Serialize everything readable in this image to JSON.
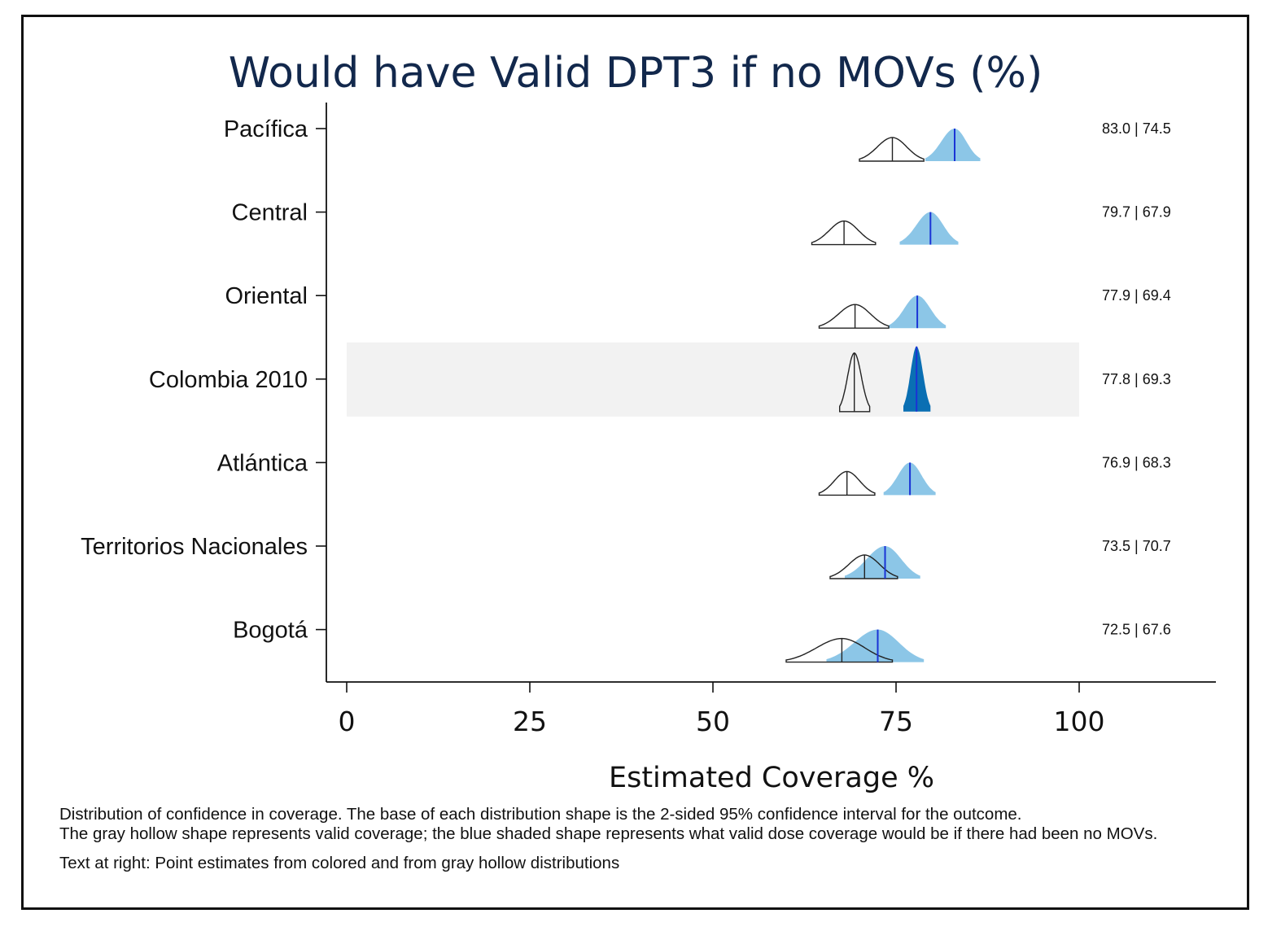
{
  "chart_data": {
    "type": "distribution",
    "title": "Would have Valid DPT3 if no MOVs (%)",
    "xlabel": "Estimated Coverage %",
    "xlim": [
      -3,
      119
    ],
    "xticks": [
      0,
      25,
      50,
      75,
      100
    ],
    "highlight_row": "Colombia 2010",
    "rows": [
      {
        "label": "Pacífica",
        "value_text": "83.0 | 74.5",
        "blue": {
          "point": 83.0,
          "lo": 79.0,
          "hi": 86.5,
          "aggregate": false
        },
        "gray": {
          "point": 74.5,
          "lo": 70.0,
          "hi": 78.8
        }
      },
      {
        "label": "Central",
        "value_text": "79.7 | 67.9",
        "blue": {
          "point": 79.7,
          "lo": 75.5,
          "hi": 83.5,
          "aggregate": false
        },
        "gray": {
          "point": 67.9,
          "lo": 63.5,
          "hi": 72.2
        }
      },
      {
        "label": "Oriental",
        "value_text": "77.9 | 69.4",
        "blue": {
          "point": 77.9,
          "lo": 74.0,
          "hi": 81.8,
          "aggregate": false
        },
        "gray": {
          "point": 69.4,
          "lo": 64.5,
          "hi": 74.0
        }
      },
      {
        "label": "Colombia 2010",
        "value_text": "77.8 | 69.3",
        "blue": {
          "point": 77.8,
          "lo": 76.0,
          "hi": 79.7,
          "aggregate": true
        },
        "gray": {
          "point": 69.3,
          "lo": 67.3,
          "hi": 71.4
        }
      },
      {
        "label": "Atlántica",
        "value_text": "76.9 | 68.3",
        "blue": {
          "point": 76.9,
          "lo": 73.3,
          "hi": 80.4,
          "aggregate": false
        },
        "gray": {
          "point": 68.3,
          "lo": 64.5,
          "hi": 72.1
        }
      },
      {
        "label": "Territorios Nacionales",
        "value_text": "73.5 | 70.7",
        "blue": {
          "point": 73.5,
          "lo": 68.0,
          "hi": 78.3,
          "aggregate": false
        },
        "gray": {
          "point": 70.7,
          "lo": 66.0,
          "hi": 75.2
        }
      },
      {
        "label": "Bogotá",
        "value_text": "72.5 | 67.6",
        "blue": {
          "point": 72.5,
          "lo": 65.5,
          "hi": 78.8,
          "aggregate": false
        },
        "gray": {
          "point": 67.6,
          "lo": 60.0,
          "hi": 74.5
        }
      }
    ],
    "notes": [
      "Distribution of confidence in coverage.  The base of each distribution shape is the 2-sided 95% confidence interval for the outcome.",
      "The gray hollow shape represents valid coverage; the blue shaded shape represents what valid dose coverage would be if there had been no MOVs.",
      "Text at right: Point estimates from colored and from gray hollow distributions"
    ],
    "colors": {
      "blue_fill": "#8cc6e7",
      "blue_fill_aggregate": "#0a6fb3",
      "point_line": "#1a33d6",
      "gray_outline": "#222222",
      "highlight_band": "#f2f2f2",
      "title": "#12284c"
    }
  }
}
